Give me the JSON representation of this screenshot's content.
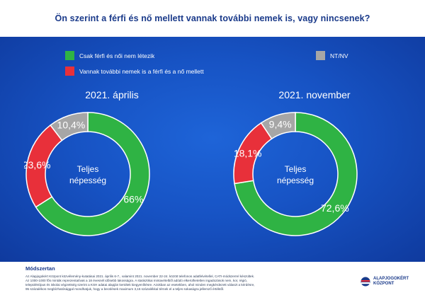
{
  "title": "Ön szerint a férfi és nő mellett vannak további nemek is, vagy nincsenek?",
  "legend": [
    {
      "label": "Csak férfi és női nem létezik",
      "color": "#2fb344"
    },
    {
      "label": "Vannak további nemek is a férfi és a nő mellett",
      "color": "#e8303a"
    },
    {
      "label": "NT/NV",
      "color": "#a6a6a6"
    }
  ],
  "center_label": [
    "Teljes",
    "népesség"
  ],
  "chart_data": [
    {
      "type": "pie",
      "title": "2021. április",
      "categories": [
        "Csak férfi és női nem létezik",
        "Vannak további nemek is a férfi és a nő mellett",
        "NT/NV"
      ],
      "values": [
        66,
        23.6,
        10.4
      ],
      "labels": [
        "66%",
        "23,6%",
        "10,4%"
      ],
      "colors": [
        "#2fb344",
        "#e8303a",
        "#a6a6a6"
      ]
    },
    {
      "type": "pie",
      "title": "2021. november",
      "categories": [
        "Csak férfi és női nem létezik",
        "Vannak további nemek is a férfi és a nő mellett",
        "NT/NV"
      ],
      "values": [
        72.6,
        18.1,
        9.4
      ],
      "labels": [
        "72,6%",
        "18,1%",
        "9,4%"
      ],
      "colors": [
        "#2fb344",
        "#e8303a",
        "#a6a6a6"
      ]
    }
  ],
  "methodology": {
    "heading": "Módszertan",
    "lines": [
      "Az Alapjogokért Központ közvélemény-kutatásai 2021. április 6-7., valamint 2021. november 22-24. között telefonos adatfelvétellel, CATI-módszerrel készültek.",
      "Az 1000-1000 fős minták reprezentatívak a 18 évesnél idősebb lakosságra. A statisztikai mintavételből adódó elkerülhetetlen ingadozások nem, kor, régió,",
      "településtípus és iskolai végzettség szerint a KSH adatai alapján kerültek kiegyenlítésre. Azokban az esetekben, ahol minden megkérdezett választ a kérdésre,",
      "95 százalékos megbízhatósággal mondhatjuk, hogy a becslések maximum 3,16 százalékkal térnek el a teljes sokaságra jellemző értéktől."
    ]
  },
  "logo": {
    "line1": "ALAPJOGOKÉRT",
    "line2": "KÖZPONT"
  }
}
